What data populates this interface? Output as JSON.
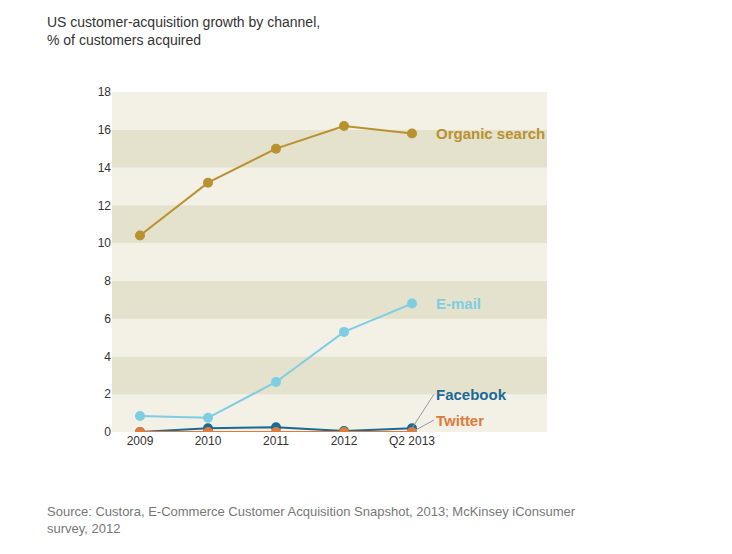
{
  "chart_data": {
    "type": "line",
    "title": "US customer-acquisition growth by channel,",
    "subtitle": "% of customers acquired",
    "source": "Source: Custora, E-Commerce Customer Acquisition Snapshot, 2013; McKinsey iConsumer survey, 2012",
    "categories": [
      "2009",
      "2010",
      "2011",
      "2012",
      "Q2 2013"
    ],
    "series": [
      {
        "name": "Organic search",
        "color": "#b8922e",
        "marker": "circle",
        "line_style": "solid",
        "values": [
          10.4,
          13.2,
          15.0,
          16.2,
          15.8
        ]
      },
      {
        "name": "E-mail",
        "color": "#7fcde3",
        "marker": "circle",
        "line_style": "solid",
        "values": [
          0.85,
          0.75,
          2.65,
          5.3,
          6.8
        ]
      },
      {
        "name": "Facebook",
        "color": "#1a6a96",
        "marker": "circle",
        "line_style": "solid",
        "values": [
          0.0,
          0.2,
          0.25,
          0.05,
          0.2
        ]
      },
      {
        "name": "Twitter",
        "color": "#e07b39",
        "marker": "circle",
        "line_style": "solid",
        "values": [
          0.0,
          0.0,
          0.0,
          0.0,
          0.0
        ]
      }
    ],
    "ylim": [
      0,
      18
    ],
    "yticks": [
      0,
      2,
      4,
      6,
      8,
      10,
      12,
      14,
      16,
      18
    ],
    "grid": false
  }
}
